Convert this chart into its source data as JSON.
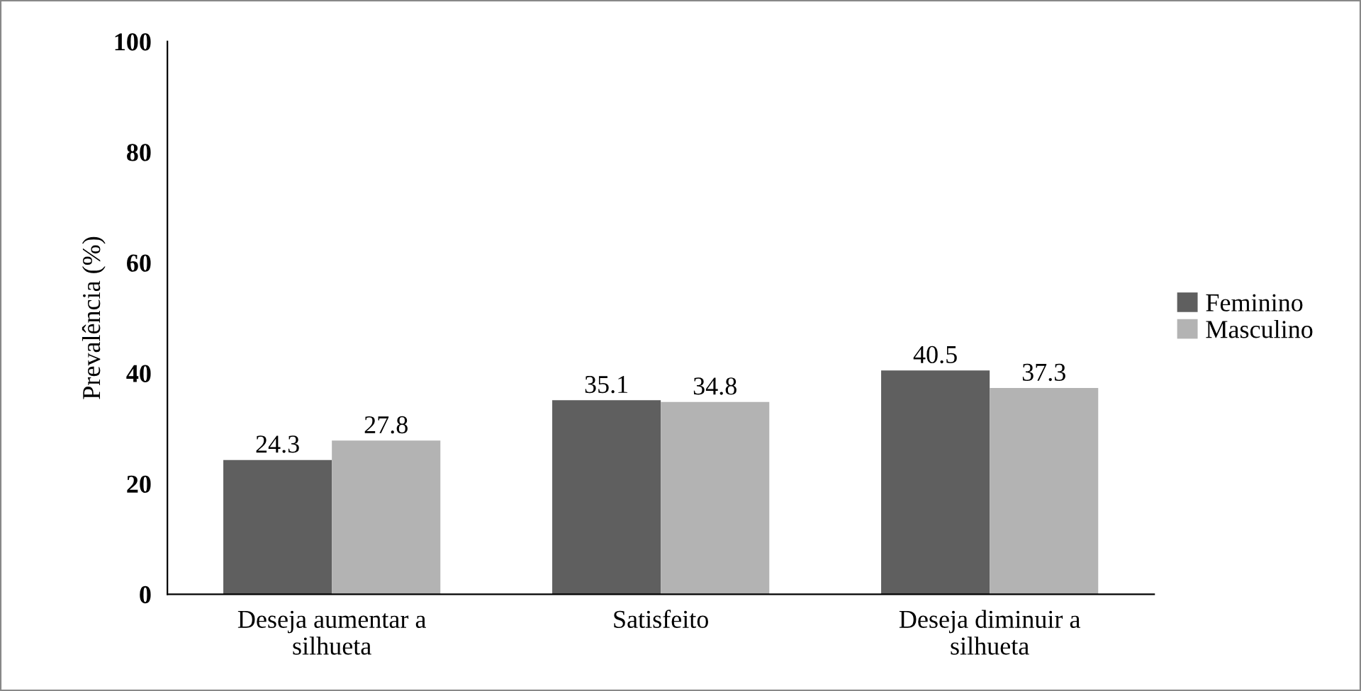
{
  "chart_data": {
    "type": "bar",
    "ylabel": "Prevalência (%)",
    "categories": [
      "Deseja aumentar a\nsilhueta",
      "Satisfeito",
      "Deseja diminuir a\nsilhueta"
    ],
    "series": [
      {
        "name": "Feminino",
        "color": "#5f5f5f",
        "values": [
          24.3,
          35.1,
          40.5
        ]
      },
      {
        "name": "Masculino",
        "color": "#b3b3b3",
        "values": [
          27.8,
          34.8,
          37.3
        ]
      }
    ],
    "ylim": [
      0,
      100
    ],
    "yticks": [
      0,
      20,
      40,
      60,
      80,
      100
    ],
    "grid": false,
    "legend": "right",
    "data_labels": true
  }
}
